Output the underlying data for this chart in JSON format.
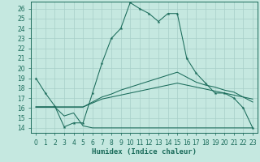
{
  "xlabel": "Humidex (Indice chaleur)",
  "ylabel": "",
  "bg_color": "#c5e8e0",
  "grid_color": "#a8cfc8",
  "line_color": "#1a6b5a",
  "xlim": [
    -0.5,
    23.5
  ],
  "ylim": [
    13.5,
    26.7
  ],
  "xticks": [
    0,
    1,
    2,
    3,
    4,
    5,
    6,
    7,
    8,
    9,
    10,
    11,
    12,
    13,
    14,
    15,
    16,
    17,
    18,
    19,
    20,
    21,
    22,
    23
  ],
  "yticks": [
    14,
    15,
    16,
    17,
    18,
    19,
    20,
    21,
    22,
    23,
    24,
    25,
    26
  ],
  "line1_x": [
    0,
    1,
    2,
    3,
    4,
    5,
    6,
    7,
    8,
    9,
    10,
    11,
    12,
    13,
    14,
    15,
    16,
    17,
    18,
    19,
    20,
    21,
    22,
    23
  ],
  "line1_y": [
    19,
    17.5,
    16.2,
    14.1,
    14.5,
    14.5,
    17.5,
    20.5,
    23,
    24,
    26.6,
    26,
    25.5,
    24.7,
    25.5,
    25.5,
    21,
    19.5,
    18.5,
    17.5,
    17.5,
    17,
    16,
    14
  ],
  "line2_x": [
    0,
    1,
    2,
    3,
    4,
    5,
    6,
    7,
    8,
    9,
    10,
    11,
    12,
    13,
    14,
    15,
    16,
    17,
    18,
    19,
    20,
    21,
    22,
    23
  ],
  "line2_y": [
    16.1,
    16.1,
    16.1,
    15.2,
    15.5,
    14.2,
    14,
    14,
    14,
    14,
    14,
    14,
    14,
    14,
    14,
    14,
    14,
    14,
    14,
    14,
    14,
    14,
    14,
    14
  ],
  "line3_x": [
    0,
    1,
    2,
    3,
    4,
    5,
    6,
    7,
    8,
    9,
    10,
    11,
    12,
    13,
    14,
    15,
    16,
    17,
    18,
    19,
    20,
    21,
    22,
    23
  ],
  "line3_y": [
    16.1,
    16.1,
    16.1,
    16.1,
    16.1,
    16.1,
    16.5,
    16.9,
    17.1,
    17.3,
    17.5,
    17.7,
    17.9,
    18.1,
    18.3,
    18.5,
    18.3,
    18.1,
    17.9,
    17.7,
    17.5,
    17.3,
    17.1,
    16.9
  ],
  "line4_x": [
    0,
    1,
    2,
    3,
    4,
    5,
    6,
    7,
    8,
    9,
    10,
    11,
    12,
    13,
    14,
    15,
    16,
    17,
    18,
    19,
    20,
    21,
    22,
    23
  ],
  "line4_y": [
    16.1,
    16.1,
    16.1,
    16.1,
    16.1,
    16.1,
    16.6,
    17.1,
    17.4,
    17.8,
    18.1,
    18.4,
    18.7,
    19.0,
    19.3,
    19.6,
    19.1,
    18.6,
    18.3,
    18.1,
    17.8,
    17.6,
    17.1,
    16.6
  ]
}
